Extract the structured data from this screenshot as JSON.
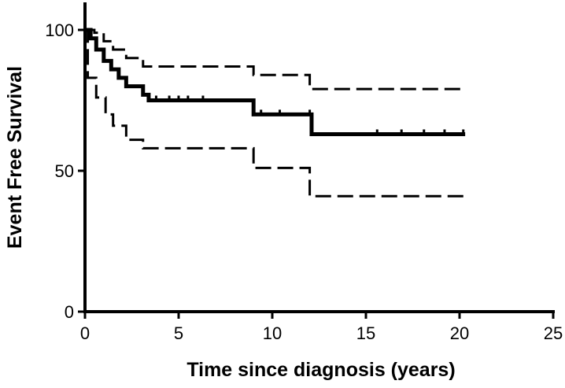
{
  "chart_data": {
    "type": "line",
    "title": "",
    "xlabel": "Time since diagnosis (years)",
    "ylabel": "Event Free Survival",
    "xlim": [
      0,
      25
    ],
    "ylim": [
      0,
      100
    ],
    "xticks": [
      0,
      5,
      10,
      15,
      20,
      25
    ],
    "yticks": [
      0,
      50,
      100
    ],
    "grid": false,
    "legend": "none",
    "series": [
      {
        "style": "solid",
        "points": [
          [
            0,
            100
          ],
          [
            0.3,
            97
          ],
          [
            0.6,
            93
          ],
          [
            1.0,
            89
          ],
          [
            1.4,
            86
          ],
          [
            1.8,
            83
          ],
          [
            2.2,
            80
          ],
          [
            3.1,
            77
          ],
          [
            3.4,
            75
          ],
          [
            9.0,
            75
          ],
          [
            9.0,
            70
          ],
          [
            12.1,
            70
          ],
          [
            12.1,
            63
          ],
          [
            20.3,
            63
          ]
        ],
        "censor_times": [
          3.8,
          4.5,
          5.0,
          5.5,
          6.3,
          9.4,
          10.4,
          12.0,
          15.6,
          16.9,
          18.1,
          19.2,
          20.2
        ]
      },
      {
        "style": "dashed",
        "role": "upper_ci",
        "points": [
          [
            0,
            100
          ],
          [
            0.5,
            99
          ],
          [
            1.0,
            96
          ],
          [
            1.5,
            93
          ],
          [
            2.2,
            90
          ],
          [
            3.1,
            87
          ],
          [
            9.0,
            87
          ],
          [
            9.0,
            84
          ],
          [
            12.0,
            84
          ],
          [
            12.0,
            79
          ],
          [
            20.3,
            79
          ]
        ]
      },
      {
        "style": "dashed",
        "role": "lower_ci",
        "points": [
          [
            0,
            100
          ],
          [
            0.15,
            83
          ],
          [
            0.6,
            76
          ],
          [
            1.1,
            70
          ],
          [
            1.5,
            66
          ],
          [
            2.2,
            61
          ],
          [
            3.1,
            58
          ],
          [
            9.0,
            58
          ],
          [
            9.0,
            51
          ],
          [
            12.0,
            51
          ],
          [
            12.0,
            41
          ],
          [
            20.3,
            41
          ]
        ]
      }
    ]
  },
  "axis_text": {
    "x_ticks": [
      "0",
      "5",
      "10",
      "15",
      "20",
      "25"
    ],
    "y_ticks": [
      "0",
      "50",
      "100"
    ],
    "x_title": "Time since diagnosis (years)",
    "y_title": "Event Free Survival"
  },
  "colors": {
    "line": "#000000",
    "background": "#ffffff"
  }
}
